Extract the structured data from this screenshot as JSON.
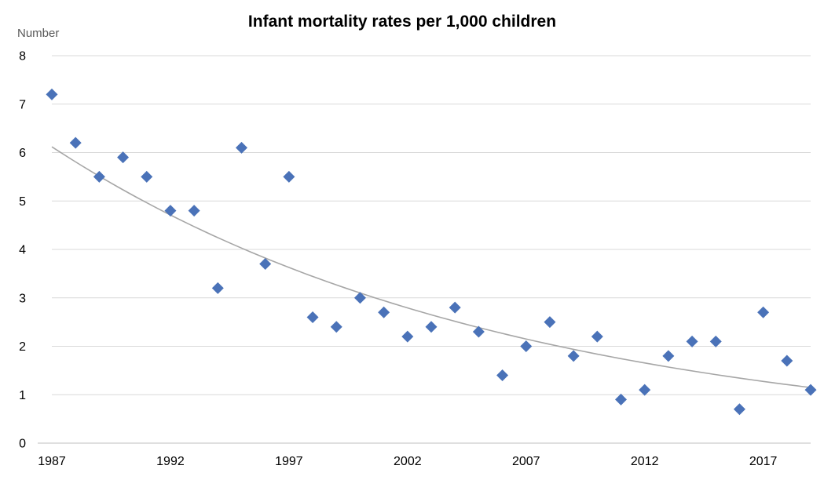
{
  "chart_data": {
    "type": "scatter",
    "title": "Infant mortality rates per 1,000 children",
    "ylabel": "Number",
    "xlabel": "",
    "xlim": [
      1987,
      2019
    ],
    "ylim": [
      0,
      8
    ],
    "x_ticks": [
      1987,
      1992,
      1997,
      2002,
      2007,
      2012,
      2017
    ],
    "y_ticks": [
      0,
      1,
      2,
      3,
      4,
      5,
      6,
      7,
      8
    ],
    "grid": "horizontal",
    "legend": "none",
    "marker": "diamond",
    "colors": {
      "points": "#4a72b8",
      "trendline": "#a6a6a6",
      "grid": "#d9d9d9"
    },
    "points": [
      {
        "x": 1987,
        "y": 7.2
      },
      {
        "x": 1988,
        "y": 6.2
      },
      {
        "x": 1989,
        "y": 5.5
      },
      {
        "x": 1990,
        "y": 5.9
      },
      {
        "x": 1991,
        "y": 5.5
      },
      {
        "x": 1992,
        "y": 4.8
      },
      {
        "x": 1993,
        "y": 4.8
      },
      {
        "x": 1994,
        "y": 3.2
      },
      {
        "x": 1995,
        "y": 6.1
      },
      {
        "x": 1996,
        "y": 3.7
      },
      {
        "x": 1997,
        "y": 5.5
      },
      {
        "x": 1998,
        "y": 2.6
      },
      {
        "x": 1999,
        "y": 2.4
      },
      {
        "x": 2000,
        "y": 3.0
      },
      {
        "x": 2001,
        "y": 2.7
      },
      {
        "x": 2002,
        "y": 2.2
      },
      {
        "x": 2003,
        "y": 2.4
      },
      {
        "x": 2004,
        "y": 2.8
      },
      {
        "x": 2005,
        "y": 2.3
      },
      {
        "x": 2006,
        "y": 1.4
      },
      {
        "x": 2007,
        "y": 2.0
      },
      {
        "x": 2008,
        "y": 2.5
      },
      {
        "x": 2009,
        "y": 1.8
      },
      {
        "x": 2010,
        "y": 2.2
      },
      {
        "x": 2011,
        "y": 0.9
      },
      {
        "x": 2012,
        "y": 1.1
      },
      {
        "x": 2013,
        "y": 1.8
      },
      {
        "x": 2014,
        "y": 2.1
      },
      {
        "x": 2015,
        "y": 2.1
      },
      {
        "x": 2016,
        "y": 0.7
      },
      {
        "x": 2017,
        "y": 2.7
      },
      {
        "x": 2018,
        "y": 1.7
      },
      {
        "x": 2019,
        "y": 1.1
      }
    ],
    "trendline": {
      "type": "exponential",
      "points": [
        {
          "x": 1987,
          "y": 6.12
        },
        {
          "x": 1995,
          "y": 4.03
        },
        {
          "x": 2003,
          "y": 2.65
        },
        {
          "x": 2011,
          "y": 1.74
        },
        {
          "x": 2019,
          "y": 1.15
        }
      ]
    }
  }
}
